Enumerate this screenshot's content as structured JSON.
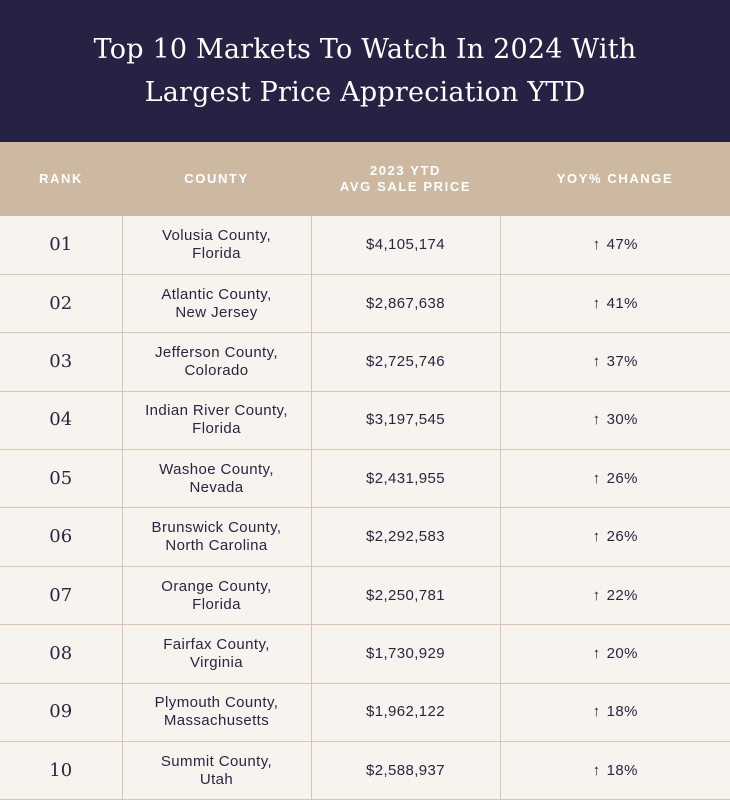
{
  "title": {
    "line1": "Top 10 Markets To Watch In 2024 With",
    "line2": "Largest Price Appreciation YTD"
  },
  "colors": {
    "header_bg": "#262244",
    "table_header_bg": "#cdb9a2",
    "row_bg": "#f7f3ee",
    "divider": "#d8c7b2"
  },
  "chart_data": {
    "type": "table",
    "columns": {
      "rank": "RANK",
      "county": "COUNTY",
      "price_line1": "2023 YTD",
      "price_line2": "AVG SALE PRICE",
      "change": "YOY% CHANGE"
    },
    "arrow_icon": "↑",
    "rows": [
      {
        "rank": "01",
        "county_line1": "Volusia County,",
        "county_line2": "Florida",
        "price": "$4,105,174",
        "change": "47%"
      },
      {
        "rank": "02",
        "county_line1": "Atlantic County,",
        "county_line2": "New Jersey",
        "price": "$2,867,638",
        "change": "41%"
      },
      {
        "rank": "03",
        "county_line1": "Jefferson County,",
        "county_line2": "Colorado",
        "price": "$2,725,746",
        "change": "37%"
      },
      {
        "rank": "04",
        "county_line1": "Indian River County,",
        "county_line2": "Florida",
        "price": "$3,197,545",
        "change": "30%"
      },
      {
        "rank": "05",
        "county_line1": "Washoe County,",
        "county_line2": "Nevada",
        "price": "$2,431,955",
        "change": "26%"
      },
      {
        "rank": "06",
        "county_line1": "Brunswick County,",
        "county_line2": "North Carolina",
        "price": "$2,292,583",
        "change": "26%"
      },
      {
        "rank": "07",
        "county_line1": "Orange County,",
        "county_line2": "Florida",
        "price": "$2,250,781",
        "change": "22%"
      },
      {
        "rank": "08",
        "county_line1": "Fairfax County,",
        "county_line2": "Virginia",
        "price": "$1,730,929",
        "change": "20%"
      },
      {
        "rank": "09",
        "county_line1": "Plymouth County,",
        "county_line2": "Massachusetts",
        "price": "$1,962,122",
        "change": "18%"
      },
      {
        "rank": "10",
        "county_line1": "Summit County,",
        "county_line2": "Utah",
        "price": "$2,588,937",
        "change": "18%"
      }
    ]
  }
}
